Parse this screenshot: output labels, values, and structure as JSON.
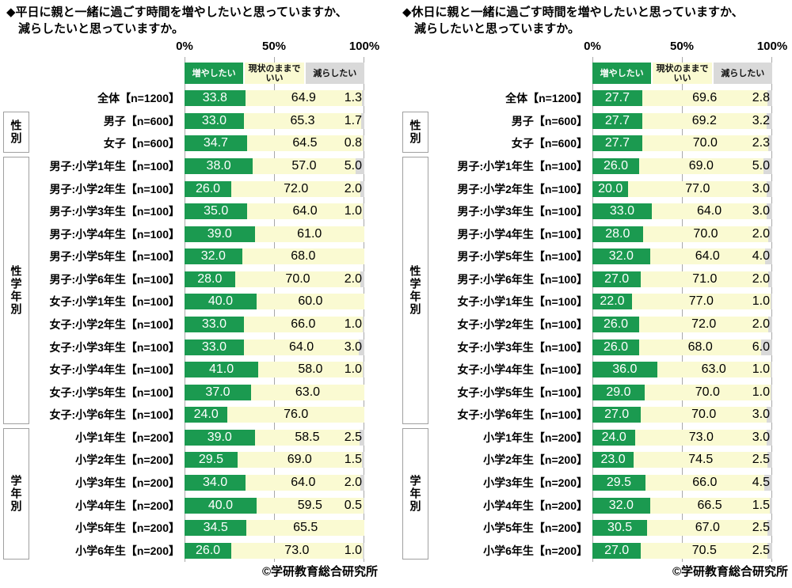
{
  "colors": {
    "increase_green": "#1b9a50",
    "keep_yellow": "#fafad2",
    "decrease_gray": "#d9d9d9",
    "gridline_gray": "#a8a8a8",
    "value_text_on_green": "#ffffff",
    "value_text_dark": "#111111"
  },
  "axis_ticks": [
    "0%",
    "50%",
    "100%"
  ],
  "legend": [
    "増やしたい",
    "現状のままでいい",
    "減らしたい"
  ],
  "row_groups": [
    {
      "label": "性別",
      "start_row": 1,
      "row_count": 2
    },
    {
      "label": "性学年別",
      "start_row": 3,
      "row_count": 12
    },
    {
      "label": "学年別",
      "start_row": 15,
      "row_count": 6
    }
  ],
  "source_credit": "©学研教育総合研究所",
  "chart_data": [
    {
      "type": "bar",
      "stacked": true,
      "orientation": "horizontal",
      "title": "◆平日に親と一緒に過ごす時間を増やしたいと思っていますか、減らしたいと思っていますか。",
      "title_lines": [
        "◆平日に親と一緒に過ごす時間を増やしたいと思っていますか、",
        "減らしたいと思っていますか。"
      ],
      "xlim": [
        0,
        100
      ],
      "x_ticks": [
        "0%",
        "50%",
        "100%"
      ],
      "legend_position": "top",
      "grid": "vertical 0/50/100",
      "categories": [
        "全体【n=1200】",
        "男子【n=600】",
        "女子【n=600】",
        "男子:小学1年生【n=100】",
        "男子:小学2年生【n=100】",
        "男子:小学3年生【n=100】",
        "男子:小学4年生【n=100】",
        "男子:小学5年生【n=100】",
        "男子:小学6年生【n=100】",
        "女子:小学1年生【n=100】",
        "女子:小学2年生【n=100】",
        "女子:小学3年生【n=100】",
        "女子:小学4年生【n=100】",
        "女子:小学5年生【n=100】",
        "女子:小学6年生【n=100】",
        "小学1年生【n=200】",
        "小学2年生【n=200】",
        "小学3年生【n=200】",
        "小学4年生【n=200】",
        "小学5年生【n=200】",
        "小学6年生【n=200】"
      ],
      "series": [
        {
          "name": "増やしたい",
          "color": "#1b9a50",
          "values": [
            33.8,
            33.0,
            34.7,
            38.0,
            26.0,
            35.0,
            39.0,
            32.0,
            28.0,
            40.0,
            33.0,
            33.0,
            41.0,
            37.0,
            24.0,
            39.0,
            29.5,
            34.0,
            40.0,
            34.5,
            26.0
          ]
        },
        {
          "name": "現状のままでいい",
          "color": "#fafad2",
          "values": [
            64.9,
            65.3,
            64.5,
            57.0,
            72.0,
            64.0,
            61.0,
            68.0,
            70.0,
            60.0,
            66.0,
            64.0,
            58.0,
            63.0,
            76.0,
            58.5,
            69.0,
            64.0,
            59.5,
            65.5,
            73.0
          ]
        },
        {
          "name": "減らしたい",
          "color": "#d9d9d9",
          "values": [
            1.3,
            1.7,
            0.8,
            5.0,
            2.0,
            1.0,
            0,
            0,
            2.0,
            0,
            1.0,
            3.0,
            1.0,
            0,
            0,
            2.5,
            1.5,
            2.0,
            0.5,
            0,
            1.0
          ]
        }
      ],
      "source": "©学研教育総合研究所"
    },
    {
      "type": "bar",
      "stacked": true,
      "orientation": "horizontal",
      "title": "◆休日に親と一緒に過ごす時間を増やしたいと思っていますか、減らしたいと思っていますか。",
      "title_lines": [
        "◆休日に親と一緒に過ごす時間を増やしたいと思っていますか、",
        "減らしたいと思っていますか。"
      ],
      "xlim": [
        0,
        100
      ],
      "x_ticks": [
        "0%",
        "50%",
        "100%"
      ],
      "legend_position": "top",
      "grid": "vertical 0/50/100",
      "categories": [
        "全体【n=1200】",
        "男子【n=600】",
        "女子【n=600】",
        "男子:小学1年生【n=100】",
        "男子:小学2年生【n=100】",
        "男子:小学3年生【n=100】",
        "男子:小学4年生【n=100】",
        "男子:小学5年生【n=100】",
        "男子:小学6年生【n=100】",
        "女子:小学1年生【n=100】",
        "女子:小学2年生【n=100】",
        "女子:小学3年生【n=100】",
        "女子:小学4年生【n=100】",
        "女子:小学5年生【n=100】",
        "女子:小学6年生【n=100】",
        "小学1年生【n=200】",
        "小学2年生【n=200】",
        "小学3年生【n=200】",
        "小学4年生【n=200】",
        "小学5年生【n=200】",
        "小学6年生【n=200】"
      ],
      "series": [
        {
          "name": "増やしたい",
          "color": "#1b9a50",
          "values": [
            27.7,
            27.7,
            27.7,
            26.0,
            20.0,
            33.0,
            28.0,
            32.0,
            27.0,
            22.0,
            26.0,
            26.0,
            36.0,
            29.0,
            27.0,
            24.0,
            23.0,
            29.5,
            32.0,
            30.5,
            27.0
          ]
        },
        {
          "name": "現状のままでいい",
          "color": "#fafad2",
          "values": [
            69.6,
            69.2,
            70.0,
            69.0,
            77.0,
            64.0,
            70.0,
            64.0,
            71.0,
            77.0,
            72.0,
            68.0,
            63.0,
            70.0,
            70.0,
            73.0,
            74.5,
            66.0,
            66.5,
            67.0,
            70.5
          ]
        },
        {
          "name": "減らしたい",
          "color": "#d9d9d9",
          "values": [
            2.8,
            3.2,
            2.3,
            5.0,
            3.0,
            3.0,
            2.0,
            4.0,
            2.0,
            1.0,
            2.0,
            6.0,
            1.0,
            1.0,
            3.0,
            3.0,
            2.5,
            4.5,
            1.5,
            2.5,
            2.5
          ]
        }
      ],
      "source": "©学研教育総合研究所"
    }
  ]
}
